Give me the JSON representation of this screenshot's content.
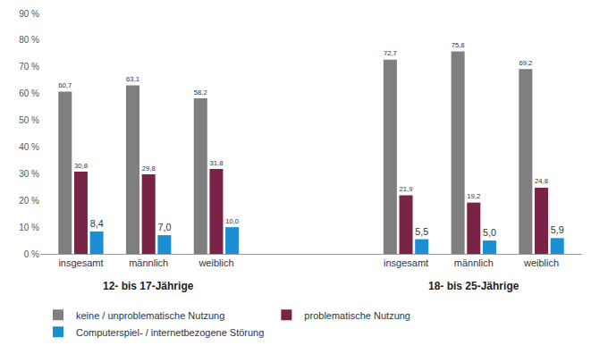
{
  "chart_data": {
    "type": "bar",
    "categories": [
      [
        "12- bis 17-Jährige",
        "insgesamt"
      ],
      [
        "12- bis 17-Jährige",
        "männlich"
      ],
      [
        "12- bis 17-Jährige",
        "weiblich"
      ],
      [
        "18- bis 25-Jährige",
        "insgesamt"
      ],
      [
        "18- bis 25-Jährige",
        "männlich"
      ],
      [
        "18- bis 25-Jährige",
        "weiblich"
      ]
    ],
    "series": [
      {
        "name": "keine / unproblematische Nutzung",
        "color": "#7f7f7f",
        "values": [
          60.7,
          63.1,
          58.2,
          72.7,
          75.8,
          69.2
        ],
        "value_labels": [
          "60,7",
          "63,1",
          "58,2",
          "72,7",
          "75,8",
          "69,2"
        ]
      },
      {
        "name": "problematische Nutzung",
        "color": "#7b2346",
        "values": [
          30.8,
          29.8,
          31.8,
          21.9,
          19.2,
          24.8
        ],
        "value_labels": [
          "30,8",
          "29,8",
          "31,8",
          "21,9",
          "19,2",
          "24,8"
        ]
      },
      {
        "name": "Computerspiel- / internetbezogene Störung",
        "color": "#1b8fd2",
        "values": [
          8.4,
          7.0,
          10.0,
          5.5,
          5.0,
          5.9
        ],
        "value_labels": [
          "8,4",
          "7,0",
          "10,0",
          "5,5",
          "5,0",
          "5,9"
        ]
      }
    ],
    "ylim": [
      0,
      90
    ],
    "yticks": [
      {
        "value": 0,
        "label": "0 %"
      },
      {
        "value": 10,
        "label": "10 %"
      },
      {
        "value": 20,
        "label": "20 %"
      },
      {
        "value": 30,
        "label": "30 %"
      },
      {
        "value": 40,
        "label": "40 %"
      },
      {
        "value": 50,
        "label": "50 %"
      },
      {
        "value": 60,
        "label": "60 %"
      },
      {
        "value": 70,
        "label": "70 %"
      },
      {
        "value": 80,
        "label": "80 %"
      },
      {
        "value": 90,
        "label": "90 %"
      }
    ],
    "grid": false,
    "legend": "bottom",
    "data_labels": true
  }
}
